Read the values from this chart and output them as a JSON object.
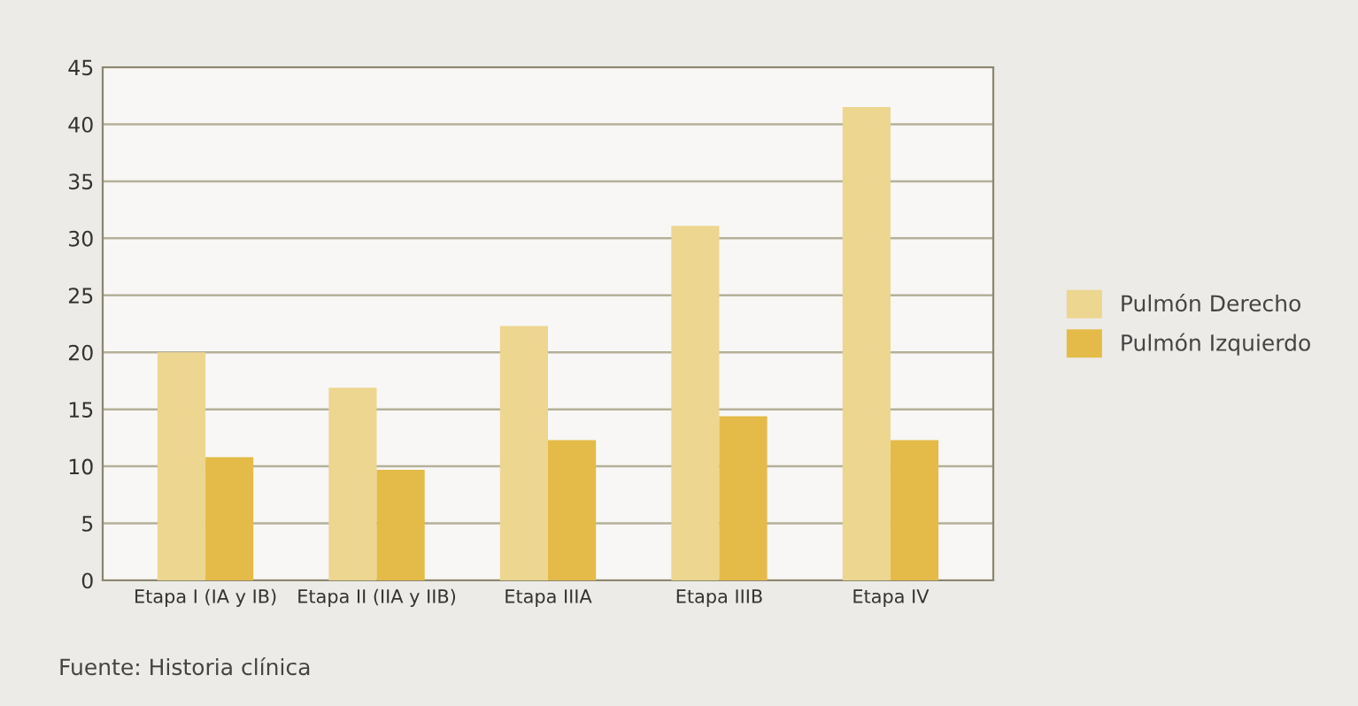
{
  "chart_data": {
    "type": "bar",
    "categories": [
      "Etapa I (IA y IB)",
      "Etapa II (IIA y IIB)",
      "Etapa IIIA",
      "Etapa IIIB",
      "Etapa IV"
    ],
    "series": [
      {
        "name": "Pulmón Derecho",
        "color": "#ecd690",
        "values": [
          20.0,
          16.9,
          22.3,
          31.1,
          41.5
        ]
      },
      {
        "name": "Pulmón Izquierdo",
        "color": "#e4bb48",
        "values": [
          10.8,
          9.7,
          12.3,
          14.4,
          12.3
        ]
      }
    ],
    "ylim": [
      0,
      45
    ],
    "yticks": [
      0,
      5,
      10,
      15,
      20,
      25,
      30,
      35,
      40,
      45
    ],
    "grid": "y",
    "legend": "right",
    "annotations": [
      "Fuente: Historia clínica"
    ]
  }
}
